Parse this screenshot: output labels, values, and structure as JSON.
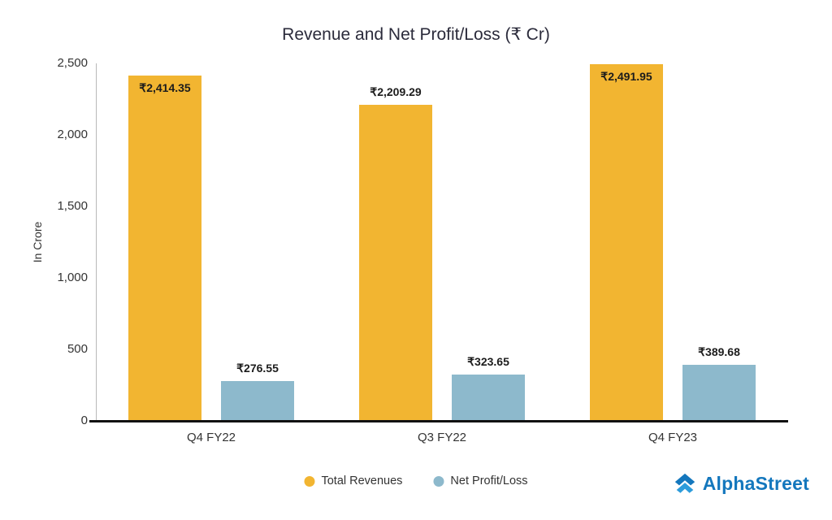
{
  "chart_data": {
    "type": "bar",
    "title": "Revenue and Net Profit/Loss (₹ Cr)",
    "ylabel": "In Crore",
    "xlabel": "",
    "categories": [
      "Q4 FY22",
      "Q3 FY22",
      "Q4 FY23"
    ],
    "series": [
      {
        "name": "Total Revenues",
        "color": "#F2B531",
        "values": [
          2414.35,
          2209.29,
          2491.95
        ],
        "labels": [
          "₹2,414.35",
          "₹2,209.29",
          "₹2,491.95"
        ]
      },
      {
        "name": "Net Profit/Loss",
        "color": "#8DB9CC",
        "values": [
          276.55,
          323.65,
          389.68
        ],
        "labels": [
          "₹276.55",
          "₹323.65",
          "₹389.68"
        ]
      }
    ],
    "ylim": [
      0,
      2500
    ],
    "yticks": [
      0,
      500,
      1000,
      1500,
      2000,
      2500
    ],
    "ytick_labels": [
      "0",
      "500",
      "1,000",
      "1,500",
      "2,000",
      "2,500"
    ],
    "grid": false,
    "legend_position": "bottom"
  },
  "branding": {
    "logo_text": "AlphaStreet",
    "logo_color": "#1477bd"
  }
}
